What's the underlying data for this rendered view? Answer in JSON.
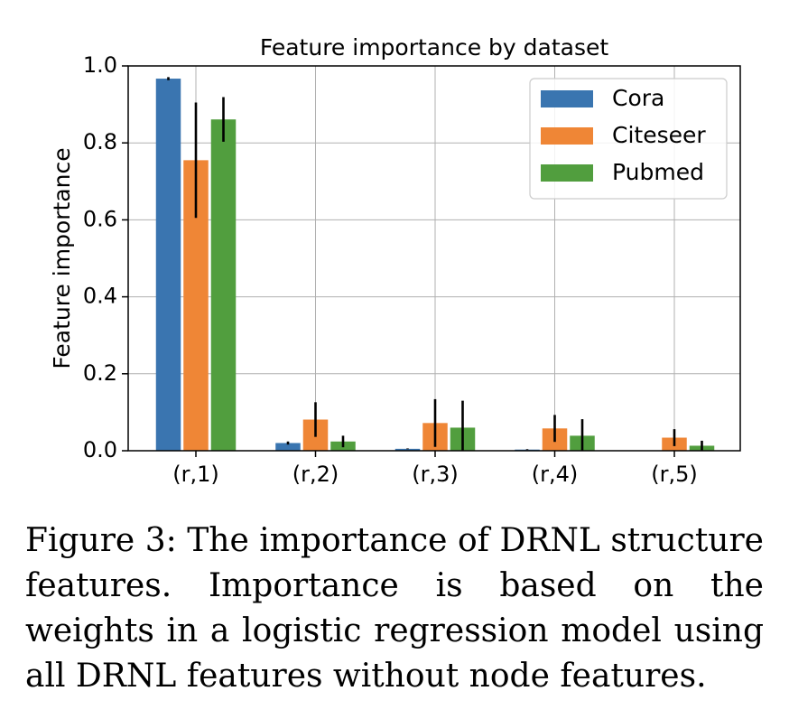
{
  "chart_data": {
    "type": "bar",
    "title": "Feature importance by dataset",
    "xlabel": "",
    "ylabel": "Feature importance",
    "categories": [
      "(r,1)",
      "(r,2)",
      "(r,3)",
      "(r,4)",
      "(r,5)"
    ],
    "ylim": [
      0,
      1.0
    ],
    "yticks": [
      "0.0",
      "0.2",
      "0.4",
      "0.6",
      "0.8",
      "1.0"
    ],
    "grid": true,
    "legend_position": "top-right",
    "series": [
      {
        "name": "Cora",
        "color": "#3a75b0",
        "values": [
          0.967,
          0.02,
          0.005,
          0.003,
          0.0
        ],
        "errors": [
          0.004,
          0.004,
          0.001,
          0.001,
          0.0
        ]
      },
      {
        "name": "Citeseer",
        "color": "#ef8636",
        "values": [
          0.755,
          0.081,
          0.072,
          0.058,
          0.034
        ],
        "errors": [
          0.15,
          0.045,
          0.062,
          0.035,
          0.022
        ]
      },
      {
        "name": "Pubmed",
        "color": "#519e3e",
        "values": [
          0.861,
          0.024,
          0.06,
          0.039,
          0.013
        ],
        "errors": [
          0.058,
          0.015,
          0.07,
          0.043,
          0.013
        ]
      }
    ]
  },
  "caption": "Figure 3: The importance of DRNL structure features. Importance is based on the weights in a logistic regression model using all DRNL features without node features."
}
